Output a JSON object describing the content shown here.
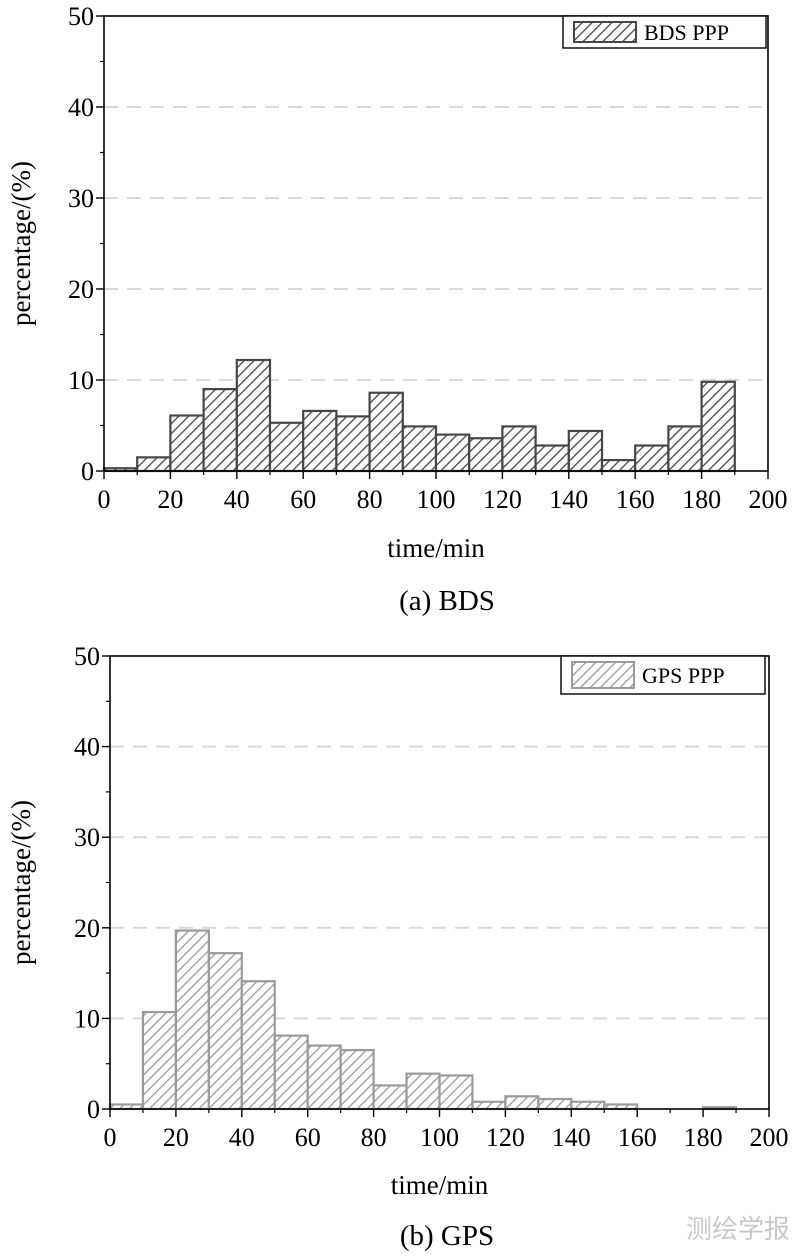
{
  "chart_data": [
    {
      "type": "bar",
      "panel": "a",
      "caption": "(a) BDS",
      "xlabel": "time/min",
      "ylabel": "percentage/(%)",
      "legend": "BDS PPP",
      "legend_position": "top-right",
      "xlim": [
        0,
        200
      ],
      "ylim": [
        0,
        50
      ],
      "xticks": [
        "0",
        "20",
        "40",
        "60",
        "80",
        "100",
        "120",
        "140",
        "160",
        "180",
        "200"
      ],
      "yticks": [
        "0",
        "10",
        "20",
        "30",
        "40",
        "50"
      ],
      "grid": "horizontal dashed",
      "bin_width": 10,
      "bin_starts": [
        0,
        10,
        20,
        30,
        40,
        50,
        60,
        70,
        80,
        90,
        100,
        110,
        120,
        130,
        140,
        150,
        160,
        170,
        180
      ],
      "values": [
        0.3,
        1.5,
        6.1,
        9.0,
        12.2,
        5.3,
        6.6,
        6.0,
        8.6,
        4.9,
        4.0,
        3.6,
        4.9,
        2.8,
        4.4,
        1.2,
        2.8,
        4.9,
        9.8
      ],
      "colors": {
        "fill": "#ffffff",
        "hatch": "#464646",
        "stroke": "#464646"
      }
    },
    {
      "type": "bar",
      "panel": "b",
      "caption": "(b) GPS",
      "xlabel": "time/min",
      "ylabel": "percentage/(%)",
      "legend": "GPS PPP",
      "legend_position": "top-right",
      "xlim": [
        0,
        200
      ],
      "ylim": [
        0,
        50
      ],
      "xticks": [
        "0",
        "20",
        "40",
        "60",
        "80",
        "100",
        "120",
        "140",
        "160",
        "180",
        "200"
      ],
      "yticks": [
        "0",
        "10",
        "20",
        "30",
        "40",
        "50"
      ],
      "grid": "horizontal dashed",
      "bin_width": 10,
      "bin_starts": [
        0,
        10,
        20,
        30,
        40,
        50,
        60,
        70,
        80,
        90,
        100,
        110,
        120,
        130,
        140,
        150,
        160,
        170,
        180
      ],
      "values": [
        0.5,
        10.7,
        19.7,
        17.2,
        14.1,
        8.1,
        7.0,
        6.5,
        2.6,
        3.9,
        3.7,
        0.8,
        1.4,
        1.1,
        0.8,
        0.5,
        0.0,
        0.0,
        0.2
      ],
      "colors": {
        "fill": "#ffffff",
        "hatch": "#9a9a9a",
        "stroke": "#9a9a9a"
      }
    }
  ],
  "watermark": "测绘学报"
}
